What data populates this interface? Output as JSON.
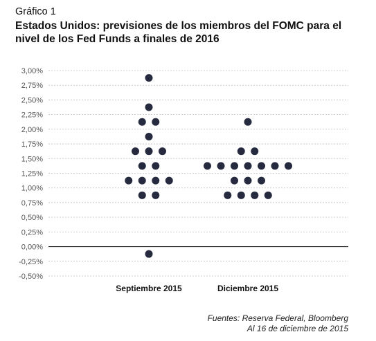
{
  "header": {
    "figure_label": "Gráfico 1",
    "title": "Estados Unidos: previsiones de los miembros del FOMC para el nivel de los Fed Funds a finales de 2016"
  },
  "source": {
    "line1": "Fuentes: Reserva Federal, Bloomberg",
    "line2": "Al 16 de diciembre de 2015"
  },
  "chart_data": {
    "type": "scatter",
    "categories": [
      "Septiembre 2015",
      "Diciembre 2015"
    ],
    "y_ticks": [
      "3,00%",
      "2,75%",
      "2,50%",
      "2,25%",
      "2,00%",
      "1,75%",
      "1,50%",
      "1,25%",
      "1,00%",
      "0,75%",
      "0,50%",
      "0,25%",
      "0,00%",
      "-0,25%",
      "-0,50%"
    ],
    "y_tick_values": [
      3.0,
      2.75,
      2.5,
      2.25,
      2.0,
      1.75,
      1.5,
      1.25,
      1.0,
      0.75,
      0.5,
      0.25,
      0.0,
      -0.25,
      -0.5
    ],
    "ylim": [
      -0.5,
      3.0
    ],
    "grid": true,
    "dot_color": "#252a3f",
    "series": [
      {
        "values": [
          {
            "y": 2.875,
            "count": 1
          },
          {
            "y": 2.375,
            "count": 1
          },
          {
            "y": 2.125,
            "count": 2
          },
          {
            "y": 1.875,
            "count": 1
          },
          {
            "y": 1.625,
            "count": 3
          },
          {
            "y": 1.375,
            "count": 2
          },
          {
            "y": 1.125,
            "count": 4
          },
          {
            "y": 0.875,
            "count": 2
          },
          {
            "y": -0.125,
            "count": 1
          }
        ]
      },
      {
        "values": [
          {
            "y": 2.125,
            "count": 1
          },
          {
            "y": 1.625,
            "count": 2
          },
          {
            "y": 1.375,
            "count": 7
          },
          {
            "y": 1.125,
            "count": 3
          },
          {
            "y": 0.875,
            "count": 4
          }
        ]
      }
    ]
  }
}
